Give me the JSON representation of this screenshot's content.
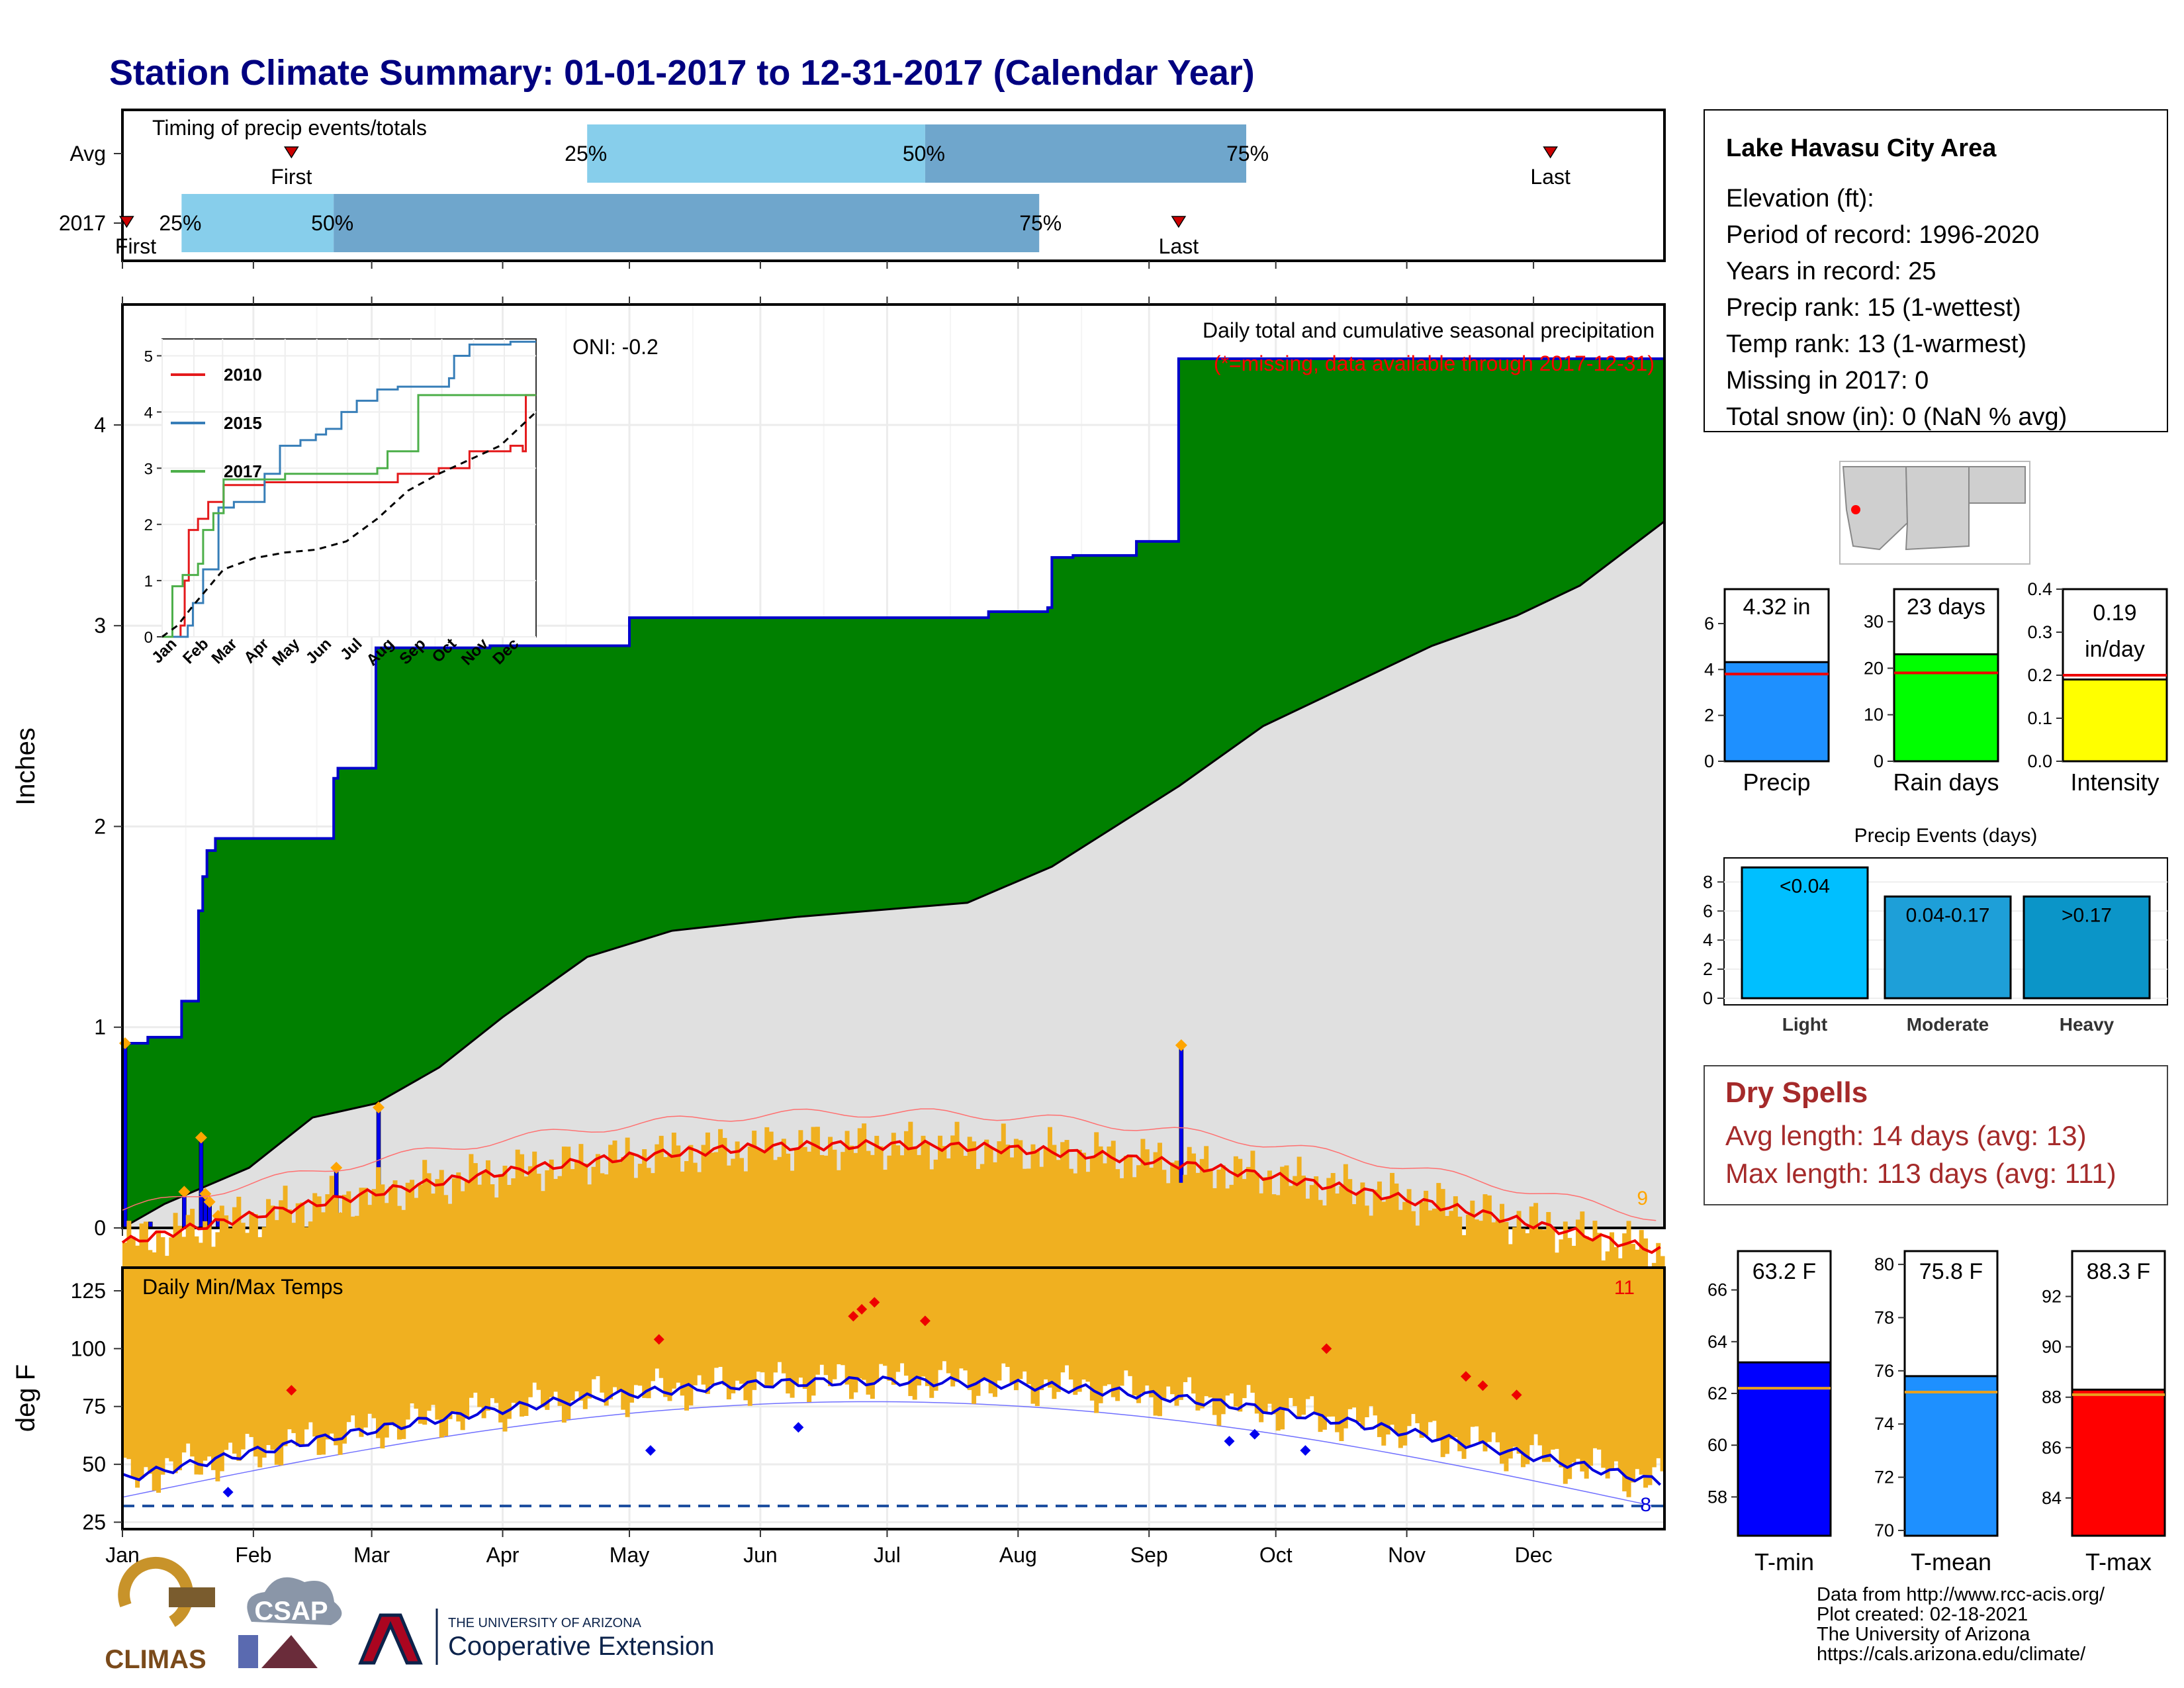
{
  "title": "Station Climate Summary: 01-01-2017 to 12-31-2017 (Calendar Year)",
  "months": [
    "Jan",
    "Feb",
    "Mar",
    "Apr",
    "May",
    "Jun",
    "Jul",
    "Aug",
    "Sep",
    "Oct",
    "Nov",
    "Dec"
  ],
  "timing": {
    "label": "Timing of precip events/totals",
    "rows": [
      {
        "name": "Avg",
        "first_day": 40,
        "last_day": 338,
        "q25": 110,
        "q50": 190,
        "q75": 266
      },
      {
        "name": "2017",
        "first_day": 1,
        "last_day": 250,
        "q25": 14,
        "q50": 50,
        "q75": 217
      }
    ],
    "first_label": "First",
    "last_label": "Last",
    "q25_label": "25%",
    "q50_label": "50%",
    "q75_label": "75%",
    "colors": {
      "light": "#87ceeb",
      "dark": "#6fa6cc",
      "marker": "#cc0000"
    }
  },
  "station": {
    "name": "Lake Havasu City Area",
    "lines": [
      "Elevation (ft):",
      "Period of record: 1996-2020",
      "Years in record: 25",
      "Precip rank: 15 (1-wettest)",
      "Temp rank: 13 (1-warmest)",
      "Missing in 2017: 0",
      "Total snow (in): 0 (NaN % avg)"
    ]
  },
  "precip_panel": {
    "ylabel": "Inches",
    "yticks": [
      0,
      1,
      2,
      3,
      4
    ],
    "ylim": [
      0,
      4.6
    ],
    "oni": "ONI: -0.2",
    "caption": "Daily total and cumulative seasonal precipitation",
    "missing_note": "(*=missing, data available through 2017-12-31)",
    "corner_count": "9",
    "colors": {
      "fill": "#008000",
      "line": "#0000cc",
      "avg_fill": "#e0e0e0",
      "bar": "#0000ee",
      "dot": "#ffa500",
      "note": "#ff0000"
    }
  },
  "inset": {
    "yticks": [
      0,
      1,
      2,
      3,
      4,
      5
    ],
    "months": [
      "Jan",
      "Feb",
      "Mar",
      "Apr",
      "May",
      "Jun",
      "Jul",
      "Aug",
      "Sep",
      "Oct",
      "Nov",
      "Dec"
    ],
    "legend": [
      {
        "name": "2010",
        "color": "#e41a1c"
      },
      {
        "name": "2015",
        "color": "#377eb8"
      },
      {
        "name": "2017",
        "color": "#4daf4a"
      }
    ]
  },
  "temp_panel": {
    "ylabel": "deg F",
    "title": "Daily Min/Max Temps",
    "yticks": [
      25,
      50,
      75,
      100,
      125
    ],
    "ylim": [
      22,
      135
    ],
    "count_max": "11",
    "count_min": "8",
    "dashed_level": 32,
    "colors": {
      "bar": "#f0b020",
      "tmax": "#ee0000",
      "tmin": "#0000dd",
      "dash": "#1e4fa0"
    }
  },
  "summary_bars": [
    {
      "label": "Precip",
      "value_text": "4.32 in",
      "value": 4.32,
      "avg": 3.8,
      "ylim": [
        0,
        7.5
      ],
      "yticks": [
        0,
        2,
        4,
        6
      ],
      "color": "#1e90ff"
    },
    {
      "label": "Rain days",
      "value_text": "23 days",
      "value": 23,
      "avg": 19,
      "ylim": [
        0,
        37
      ],
      "yticks": [
        0,
        10,
        20,
        30
      ],
      "color": "#00ff00"
    },
    {
      "label": "Intensity",
      "value_text": "0.19\nin/day",
      "value": 0.19,
      "avg": 0.2,
      "ylim": [
        0,
        0.4
      ],
      "yticks": [
        0.0,
        0.1,
        0.2,
        0.3,
        0.4
      ],
      "color": "#ffff00"
    }
  ],
  "events": {
    "title": "Precip Events (days)",
    "yticks": [
      0,
      2,
      4,
      6,
      8
    ],
    "bars": [
      {
        "category": "Light",
        "label": "<0.04",
        "value": 9,
        "color": "#00bfff"
      },
      {
        "category": "Moderate",
        "label": "0.04-0.17",
        "value": 7,
        "color": "#1e9fd8"
      },
      {
        "category": "Heavy",
        "label": ">0.17",
        "value": 7,
        "color": "#0b95c8"
      }
    ]
  },
  "dry_spells": {
    "title": "Dry Spells",
    "avg_line": "Avg length: 14 days (avg: 13)",
    "max_line": "Max length: 113 days (avg: 111)",
    "color": "#a52a2a"
  },
  "temp_bars": [
    {
      "label": "T-min",
      "value_text": "63.2 F",
      "value": 63.2,
      "avg": 62.2,
      "ylim": [
        56.5,
        67.5
      ],
      "yticks": [
        58,
        60,
        62,
        64,
        66
      ],
      "color": "#0000ff"
    },
    {
      "label": "T-mean",
      "value_text": "75.8 F",
      "value": 75.8,
      "avg": 75.2,
      "ylim": [
        69.8,
        80.5
      ],
      "yticks": [
        70,
        72,
        74,
        76,
        78,
        80
      ],
      "color": "#1e90ff"
    },
    {
      "label": "T-max",
      "value_text": "88.3 F",
      "value": 88.3,
      "avg": 88.1,
      "ylim": [
        82.5,
        93.8
      ],
      "yticks": [
        84,
        86,
        88,
        90,
        92
      ],
      "color": "#ff0000"
    }
  ],
  "footer": {
    "lines": [
      "Data from http://www.rcc-acis.org/",
      "Plot created: 02-18-2021",
      "The University of Arizona",
      "https://cals.arizona.edu/climate/"
    ],
    "climas": "CLIMAS",
    "csap": "CSAP",
    "ua_small": "THE UNIVERSITY OF ARIZONA",
    "ua_big": "Cooperative Extension"
  }
}
